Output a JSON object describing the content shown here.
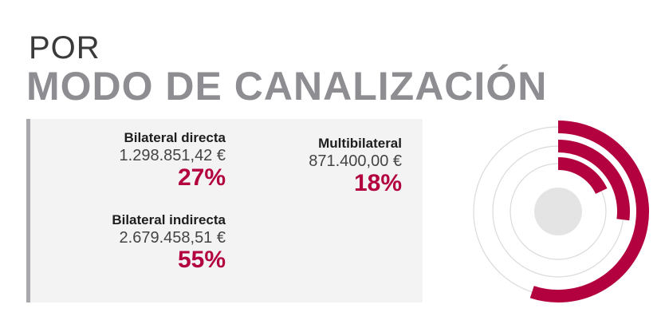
{
  "heading": {
    "line1": "POR",
    "line2": "MODO DE CANALIZACIÓN"
  },
  "colors": {
    "accent": "#b3003f",
    "track": "#dadadb",
    "center": "#e4e4e5",
    "panel": "#f3f3f4",
    "panel_border": "#a9a9ad",
    "heading_gray": "#8e8e92"
  },
  "stats": [
    {
      "label": "Bilateral directa",
      "amount": "1.298.851,42 €",
      "percent": "27%"
    },
    {
      "label": "Bilateral indirecta",
      "amount": "2.679.458,51 €",
      "percent": "55%"
    },
    {
      "label": "Multibilateral",
      "amount": "871.400,00 €",
      "percent": "18%"
    }
  ],
  "chart_data": {
    "type": "radial-bar",
    "categories": [
      "Bilateral indirecta",
      "Bilateral directa",
      "Multibilateral"
    ],
    "values": [
      55,
      27,
      18
    ],
    "unit": "%",
    "max": 100
  }
}
